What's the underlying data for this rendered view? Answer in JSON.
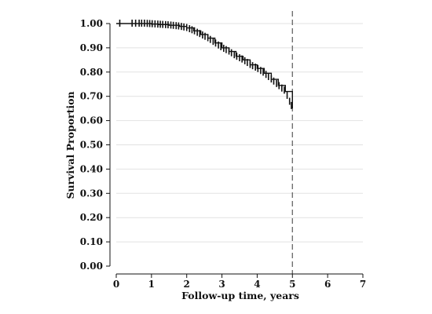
{
  "chart_data": {
    "type": "line",
    "subtype": "kaplan-meier",
    "title": "",
    "xlabel": "Follow-up time, years",
    "ylabel": "Survival Proportion",
    "xlim": [
      0,
      7
    ],
    "ylim": [
      0,
      1
    ],
    "x_ticks": [
      0,
      1,
      2,
      3,
      4,
      5,
      6,
      7
    ],
    "x_tick_labels": [
      "0",
      "1",
      "2",
      "3",
      "4",
      "5",
      "6",
      "7"
    ],
    "y_ticks": [
      0,
      0.1,
      0.2,
      0.3,
      0.4,
      0.5,
      0.6,
      0.7,
      0.8,
      0.9,
      1.0
    ],
    "y_tick_labels": [
      "0.00",
      "0.10",
      "0.20",
      "0.30",
      "0.40",
      "0.50",
      "0.60",
      "0.70",
      "0.80",
      "0.90",
      "1.00"
    ],
    "grid": "horizontal",
    "reference_line": {
      "x": 5,
      "style": "dashed"
    },
    "series": [
      {
        "x": [
          0,
          0.5,
          0.8,
          1.0,
          1.2,
          1.5,
          1.8,
          2.0,
          2.2,
          2.4,
          2.6,
          2.8,
          3.0,
          3.2,
          3.4,
          3.6,
          3.8,
          4.0,
          4.2,
          4.4,
          4.6,
          4.8,
          5.0
        ],
        "y": [
          1.0,
          1.0,
          1.0,
          0.998,
          0.996,
          0.993,
          0.988,
          0.982,
          0.97,
          0.955,
          0.94,
          0.92,
          0.9,
          0.885,
          0.865,
          0.85,
          0.83,
          0.815,
          0.795,
          0.77,
          0.745,
          0.72,
          0.65
        ],
        "color": "#111111"
      }
    ],
    "censor_marks": {
      "x": [
        0.1,
        0.45,
        0.55,
        0.65,
        0.72,
        0.8,
        0.88,
        0.95,
        1.02,
        1.1,
        1.18,
        1.25,
        1.32,
        1.4,
        1.47,
        1.55,
        1.62,
        1.7,
        1.77,
        1.85,
        1.92,
        2.0,
        2.08,
        2.15,
        2.22,
        2.3,
        2.37,
        2.45,
        2.52,
        2.6,
        2.67,
        2.75,
        2.82,
        2.9,
        2.97,
        3.05,
        3.12,
        3.2,
        3.27,
        3.35,
        3.42,
        3.5,
        3.57,
        3.65,
        3.72,
        3.8,
        3.87,
        3.95,
        4.02,
        4.1,
        4.17,
        4.25,
        4.32,
        4.4,
        4.47,
        4.55,
        4.62,
        4.7,
        4.77,
        4.85,
        4.92,
        4.97
      ]
    }
  }
}
